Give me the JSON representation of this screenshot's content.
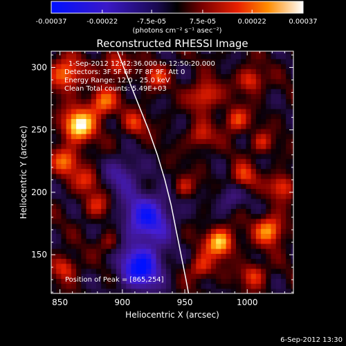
{
  "colorbar": {
    "tick_values": [
      -0.00037,
      -0.00022,
      -7.5e-05,
      7.5e-05,
      0.00022,
      0.00037
    ],
    "tick_labels": [
      "-0.00037",
      "-0.00022",
      "-7.5e-05",
      "7.5e-05",
      "0.00022",
      "0.00037"
    ],
    "unit_label": "(photons cm⁻² s⁻¹ asec⁻²)",
    "range": [
      -0.00037,
      0.00037
    ]
  },
  "chart_data": {
    "type": "heatmap",
    "title": "Reconstructed RHESSI Image",
    "xlabel": "Heliocentric X (arcsec)",
    "ylabel": "Heliocentric Y (arcsec)",
    "xlim": [
      843,
      1037
    ],
    "ylim": [
      119,
      313
    ],
    "x_ticks": [
      850,
      900,
      950,
      1000
    ],
    "y_ticks": [
      150,
      200,
      250,
      300
    ],
    "annotations": [
      "1-Sep-2012 12:42:36.000 to 12:50:20.000",
      "Detectors: 3F 5F 6F 7F 8F 9F, Att 0",
      "Energy Range: 12.0 - 25.0 keV",
      "Clean    Total counts: 5.49E+03"
    ],
    "peak_label": "Position of Peak = [865,254]",
    "peak": [
      865,
      254
    ],
    "limb_curve": [
      [
        896,
        313
      ],
      [
        905,
        290
      ],
      [
        913,
        270
      ],
      [
        921,
        250
      ],
      [
        928,
        230
      ],
      [
        934,
        210
      ],
      [
        939,
        190
      ],
      [
        943,
        170
      ],
      [
        947,
        150
      ],
      [
        951,
        130
      ],
      [
        953,
        119
      ]
    ],
    "sources": [
      {
        "x": 865,
        "y": 254,
        "amp": 0.00037,
        "sigma": 9
      },
      {
        "x": 855,
        "y": 295,
        "amp": 0.00026,
        "sigma": 9
      },
      {
        "x": 884,
        "y": 272,
        "amp": 0.00024,
        "sigma": 8
      },
      {
        "x": 895,
        "y": 302,
        "amp": 0.0002,
        "sigma": 7
      },
      {
        "x": 855,
        "y": 225,
        "amp": 0.00022,
        "sigma": 8
      },
      {
        "x": 872,
        "y": 210,
        "amp": 0.00016,
        "sigma": 7
      },
      {
        "x": 880,
        "y": 190,
        "amp": 0.00014,
        "sigma": 7
      },
      {
        "x": 910,
        "y": 255,
        "amp": 0.00016,
        "sigma": 7
      },
      {
        "x": 927,
        "y": 293,
        "amp": 0.00017,
        "sigma": 7
      },
      {
        "x": 966,
        "y": 278,
        "amp": 0.00022,
        "sigma": 8
      },
      {
        "x": 991,
        "y": 258,
        "amp": 0.0002,
        "sigma": 7
      },
      {
        "x": 1003,
        "y": 290,
        "amp": 0.0002,
        "sigma": 7
      },
      {
        "x": 963,
        "y": 245,
        "amp": 0.00016,
        "sigma": 7
      },
      {
        "x": 1012,
        "y": 240,
        "amp": 0.00015,
        "sigma": 6
      },
      {
        "x": 997,
        "y": 213,
        "amp": 0.00018,
        "sigma": 7
      },
      {
        "x": 1028,
        "y": 205,
        "amp": 0.0002,
        "sigma": 7
      },
      {
        "x": 978,
        "y": 160,
        "amp": 0.00032,
        "sigma": 8
      },
      {
        "x": 1018,
        "y": 170,
        "amp": 0.00028,
        "sigma": 8
      },
      {
        "x": 963,
        "y": 140,
        "amp": 0.00018,
        "sigma": 7
      },
      {
        "x": 1005,
        "y": 134,
        "amp": 0.00018,
        "sigma": 7
      },
      {
        "x": 949,
        "y": 205,
        "amp": 0.00014,
        "sigma": 6
      },
      {
        "x": 854,
        "y": 140,
        "amp": 0.00018,
        "sigma": 7
      },
      {
        "x": 890,
        "y": 160,
        "amp": 0.00012,
        "sigma": 6
      },
      {
        "x": 920,
        "y": 180,
        "amp": -0.0003,
        "sigma": 14
      },
      {
        "x": 915,
        "y": 140,
        "amp": -0.00036,
        "sigma": 12
      },
      {
        "x": 900,
        "y": 215,
        "amp": -0.00016,
        "sigma": 10
      },
      {
        "x": 985,
        "y": 195,
        "amp": -0.00012,
        "sigma": 8
      }
    ]
  },
  "footer": {
    "date": "6-Sep-2012 13:30"
  }
}
